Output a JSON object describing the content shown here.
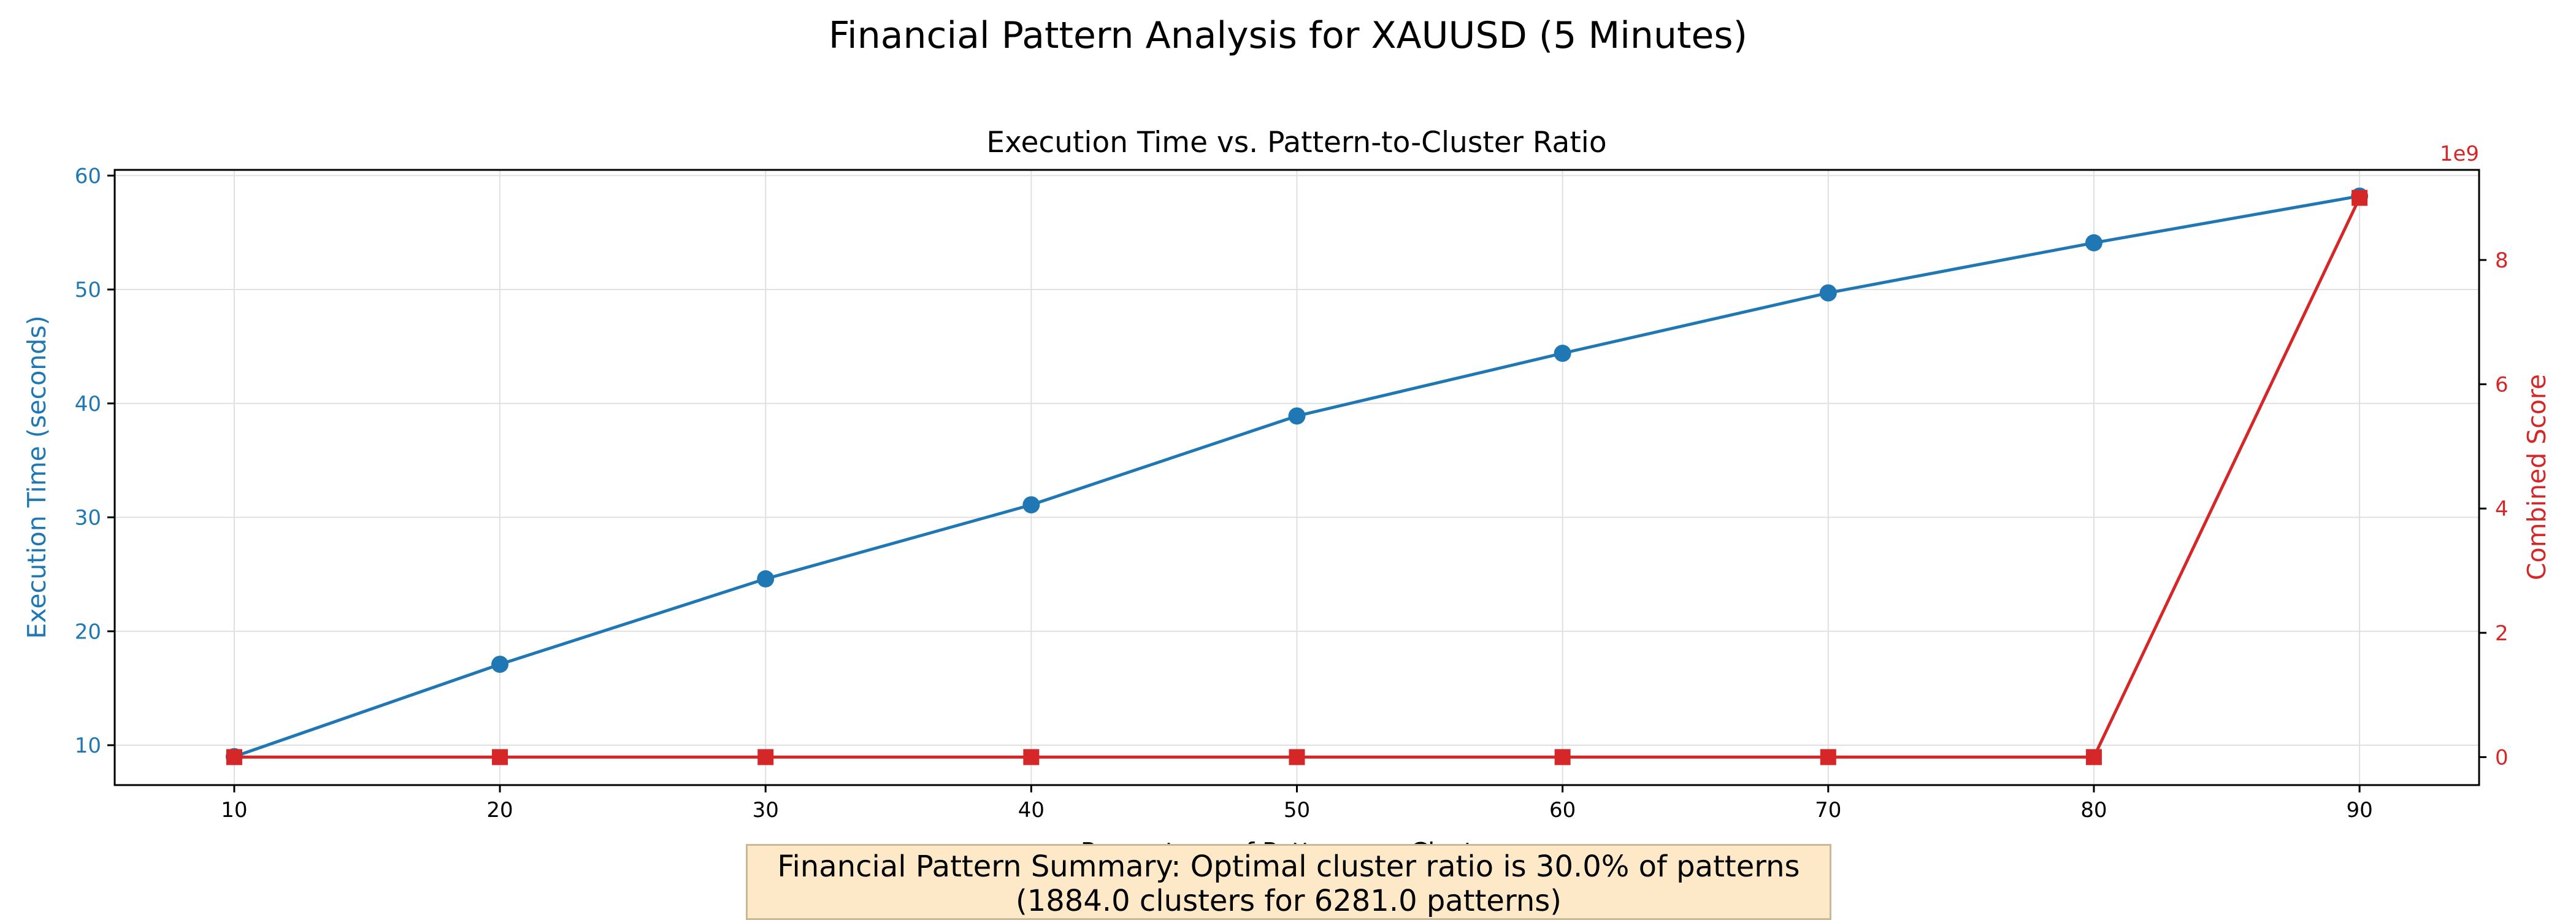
{
  "figure": {
    "suptitle": "Financial Pattern Analysis for XAUUSD (5 Minutes)",
    "summary_line1": "Financial Pattern Summary: Optimal cluster ratio is 30.0% of patterns",
    "summary_line2": "(1884.0 clusters for 6281.0 patterns)"
  },
  "colors": {
    "left": "#1f77b4",
    "right": "#d62728",
    "grid": "#e0e0e0"
  },
  "chart_data": {
    "type": "line",
    "title": "Execution Time vs. Pattern-to-Cluster Ratio",
    "xlabel": "Percentage of Patterns as Clusters",
    "ylabel": "Execution Time (seconds)",
    "y2label": "Combined Score",
    "y2_offset_text": "1e9",
    "x": [
      10,
      20,
      30,
      40,
      50,
      60,
      70,
      80,
      90
    ],
    "xlim": [
      5.5,
      94.5
    ],
    "ylim": [
      6.5,
      60.5
    ],
    "y2lim": [
      -0.45,
      9.45
    ],
    "xticks": [
      10,
      20,
      30,
      40,
      50,
      60,
      70,
      80,
      90
    ],
    "yticks": [
      10,
      20,
      30,
      40,
      50,
      60
    ],
    "y2ticks": [
      0,
      2,
      4,
      6,
      8
    ],
    "grid": true,
    "series": [
      {
        "axis": "left",
        "marker": "circle",
        "color": "#1f77b4",
        "values": [
          9.0,
          17.1,
          24.6,
          31.1,
          38.9,
          44.4,
          49.7,
          54.1,
          58.2
        ]
      },
      {
        "axis": "right",
        "marker": "square",
        "color": "#d62728",
        "values": [
          0,
          0,
          0,
          0,
          0,
          0,
          0,
          0,
          9.0
        ]
      }
    ]
  }
}
